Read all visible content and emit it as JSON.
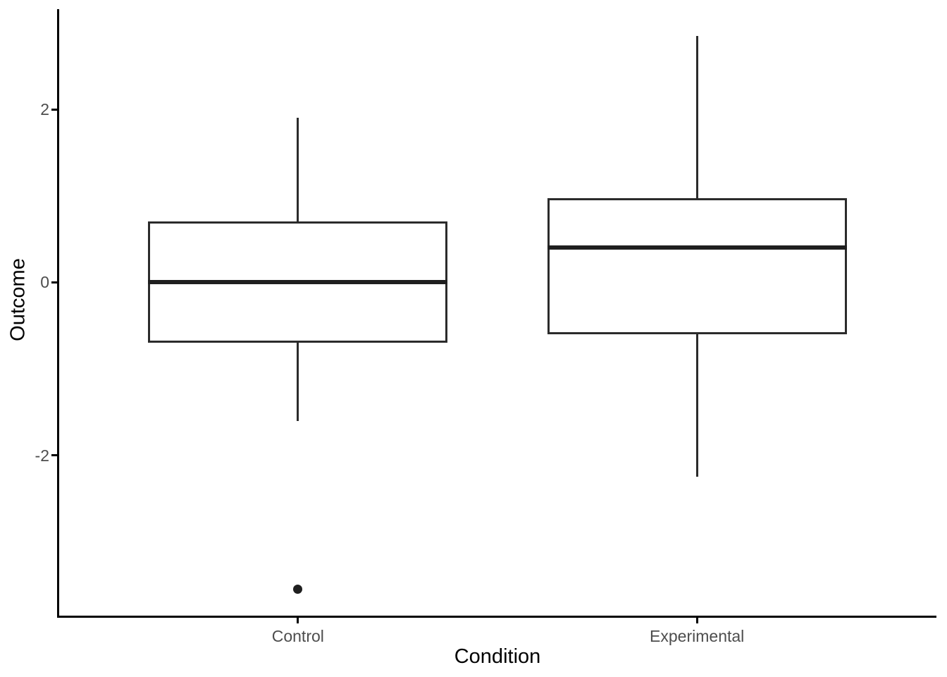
{
  "chart_data": {
    "type": "boxplot",
    "title": "",
    "xlabel": "Condition",
    "ylabel": "Outcome",
    "categories": [
      "Control",
      "Experimental"
    ],
    "y_axis": {
      "ticks": [
        2,
        0,
        -2
      ],
      "tick_labels": [
        "2",
        "0",
        "-2"
      ],
      "range": [
        -3.87,
        3.15
      ]
    },
    "grid": "off",
    "legend": "none",
    "boxes": [
      {
        "category": "Control",
        "lower_whisker": -1.6,
        "q1": -0.7,
        "median": 0.0,
        "q3": 0.7,
        "upper_whisker": 1.9,
        "outliers": [
          -3.55
        ]
      },
      {
        "category": "Experimental",
        "lower_whisker": -2.25,
        "q1": -0.6,
        "median": 0.4,
        "q3": 0.97,
        "upper_whisker": 2.85,
        "outliers": []
      }
    ],
    "style": {
      "box_line_color": "#2b2b2b",
      "median_color": "#1f1f1f",
      "outlier_color": "#1f1f1f",
      "axis_color": "#000000",
      "tick_label_color": "#4d4d4d",
      "axis_title_color": "#000000",
      "background": "#ffffff"
    }
  }
}
